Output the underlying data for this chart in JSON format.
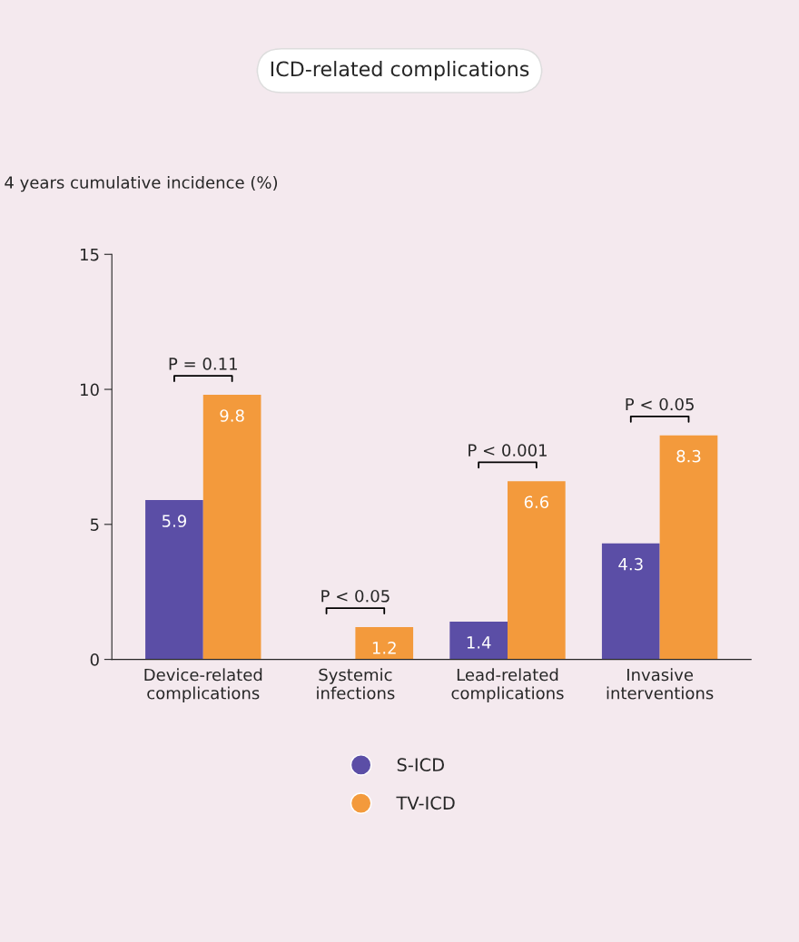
{
  "chart_data": {
    "type": "bar",
    "title": "ICD-related complications",
    "ylabel": "4 years cumulative incidence (%)",
    "categories": [
      "Device-related\ncomplications",
      "Systemic\ninfections",
      "Lead-related\ncomplications",
      "Invasive\ninterventions"
    ],
    "series": [
      {
        "name": "S-ICD",
        "color": "#5b4ea6",
        "values": [
          5.9,
          null,
          1.4,
          4.3
        ],
        "value_labels": [
          "5.9",
          null,
          "1.4",
          "4.3"
        ]
      },
      {
        "name": "TV-ICD",
        "color": "#f39a3c",
        "values": [
          9.8,
          1.2,
          6.6,
          8.3
        ],
        "value_labels": [
          "9.8",
          "1.2",
          "6.6",
          "8.3"
        ]
      }
    ],
    "ylim": [
      0,
      15
    ],
    "yticks": [
      0,
      5,
      10,
      15
    ],
    "grid": false,
    "legend": "bottom",
    "annotations": [
      "P = 0.11",
      "P < 0.05",
      "P < 0.001",
      "P < 0.05"
    ]
  }
}
